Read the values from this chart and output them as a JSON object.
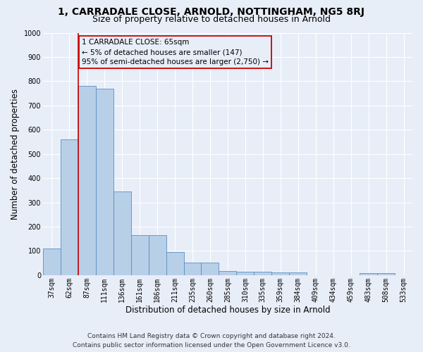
{
  "title": "1, CARRADALE CLOSE, ARNOLD, NOTTINGHAM, NG5 8RJ",
  "subtitle": "Size of property relative to detached houses in Arnold",
  "xlabel": "Distribution of detached houses by size in Arnold",
  "ylabel": "Number of detached properties",
  "bar_labels": [
    "37sqm",
    "62sqm",
    "87sqm",
    "111sqm",
    "136sqm",
    "161sqm",
    "186sqm",
    "211sqm",
    "235sqm",
    "260sqm",
    "285sqm",
    "310sqm",
    "335sqm",
    "359sqm",
    "384sqm",
    "409sqm",
    "434sqm",
    "459sqm",
    "483sqm",
    "508sqm",
    "533sqm"
  ],
  "bar_heights": [
    110,
    560,
    780,
    770,
    345,
    165,
    165,
    97,
    52,
    52,
    18,
    15,
    15,
    10,
    10,
    0,
    0,
    0,
    8,
    8,
    0
  ],
  "bar_color": "#b8cfe8",
  "bar_edge_color": "#5a8fc0",
  "ylim_max": 1000,
  "yticks": [
    0,
    100,
    200,
    300,
    400,
    500,
    600,
    700,
    800,
    900,
    1000
  ],
  "red_line_color": "#cc0000",
  "red_line_x": 1.5,
  "annotation_text": "1 CARRADALE CLOSE: 65sqm\n← 5% of detached houses are smaller (147)\n95% of semi-detached houses are larger (2,750) →",
  "background_color": "#e8eef8",
  "grid_color": "#ffffff",
  "title_fontsize": 10,
  "subtitle_fontsize": 9,
  "ylabel_fontsize": 8.5,
  "xlabel_fontsize": 8.5,
  "tick_fontsize": 7,
  "annotation_fontsize": 7.5,
  "footer_line1": "Contains HM Land Registry data © Crown copyright and database right 2024.",
  "footer_line2": "Contains public sector information licensed under the Open Government Licence v3.0.",
  "footer_fontsize": 6.5
}
